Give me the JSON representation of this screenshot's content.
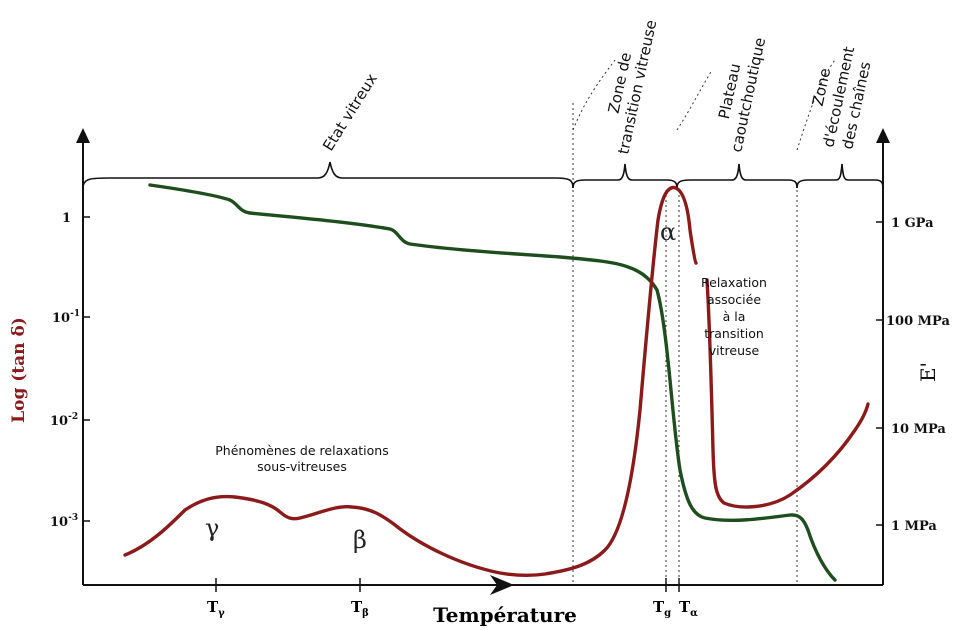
{
  "chart_data": {
    "type": "line",
    "ylabel": "Log (tan δ)",
    "ylabel_right": "E'",
    "xlabel": "Température",
    "y_scale": "log",
    "y_ticks_left": [
      {
        "label": "1",
        "value": 1
      },
      {
        "label_base": "10",
        "label_exp": "-1",
        "value": 0.1
      },
      {
        "label_base": "10",
        "label_exp": "-2",
        "value": 0.01
      },
      {
        "label_base": "10",
        "label_exp": "-3",
        "value": 0.001
      }
    ],
    "y_ticks_right": [
      "1 GPa",
      "100 MPa",
      "10 MPa",
      "1 MPa"
    ],
    "x_ticks": [
      {
        "base": "T",
        "sub": "γ"
      },
      {
        "base": "T",
        "sub": "β"
      },
      {
        "base": "T",
        "sub": "g"
      },
      {
        "base": "T",
        "sub": "α"
      }
    ],
    "zones": [
      {
        "lines": [
          "Etat vitreux"
        ]
      },
      {
        "lines": [
          "Zone de",
          "transition vitreuse"
        ]
      },
      {
        "lines": [
          "Plateau",
          "caoutchoutique"
        ]
      },
      {
        "lines": [
          "Zone",
          "d'écoulement",
          "des chaînes"
        ]
      }
    ],
    "annotations": {
      "sub_relax": [
        "Phénomènes de relaxations",
        "sous-vitreuses"
      ],
      "glass_relax": [
        "Relaxation",
        "associée",
        "à la",
        "transition",
        "vitreuse"
      ],
      "gamma": "γ",
      "beta": "β",
      "alpha": "α"
    },
    "series": [
      {
        "color": "#8b1a1a"
      },
      {
        "color": "#1e4d1e"
      }
    ]
  }
}
